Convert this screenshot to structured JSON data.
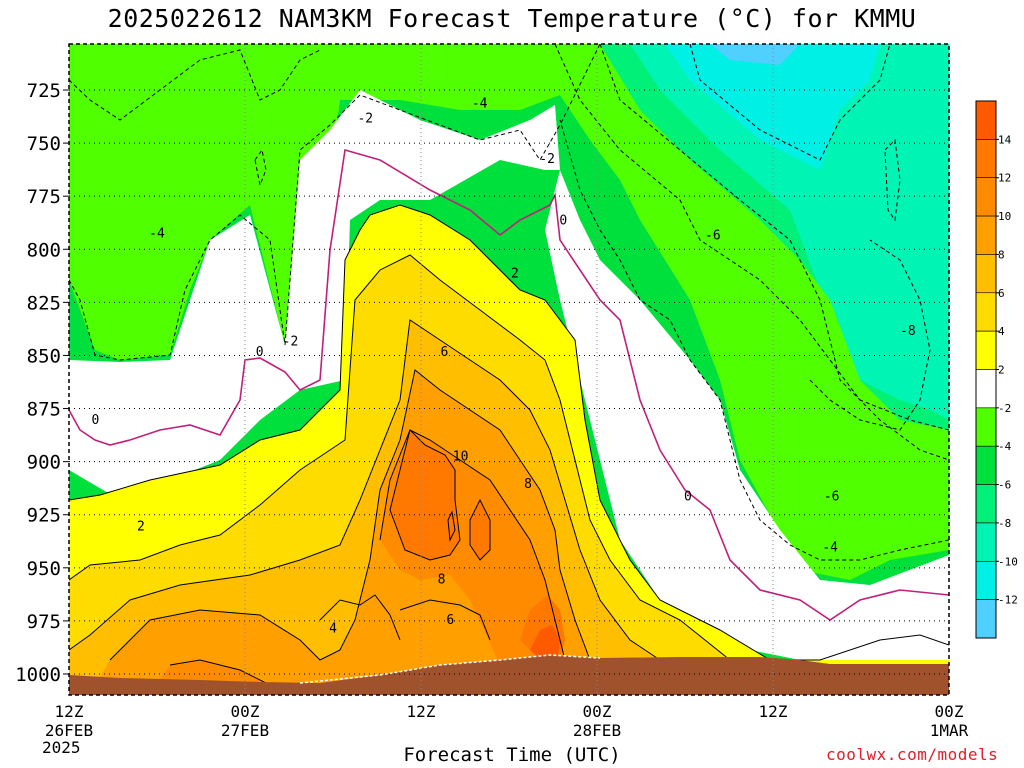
{
  "title": "2025022612 NAM3KM Forecast Temperature (°C) for KMMU",
  "xlabel": "Forecast Time (UTC)",
  "watermark": "coolwx.com/models",
  "year": "2025",
  "chart_data": {
    "type": "contour",
    "title": "2025022612 NAM3KM Forecast Temperature (°C) for KMMU",
    "xlabel": "Forecast Time (UTC)",
    "ylabel": "",
    "y_ticks": [
      725,
      750,
      775,
      800,
      825,
      850,
      875,
      900,
      925,
      950,
      975,
      1000
    ],
    "x_ticks": [
      {
        "hour": 0,
        "line1": "12Z",
        "line2": "26FEB"
      },
      {
        "hour": 12,
        "line1": "00Z",
        "line2": "27FEB"
      },
      {
        "hour": 24,
        "line1": "12Z",
        "line2": ""
      },
      {
        "hour": 36,
        "line1": "00Z",
        "line2": "28FEB"
      },
      {
        "hour": 48,
        "line1": "12Z",
        "line2": ""
      },
      {
        "hour": 60,
        "line1": "00Z",
        "line2": "1MAR"
      }
    ],
    "ylim": [
      1010,
      700
    ],
    "xlim": [
      0,
      60
    ],
    "grid": true,
    "colorbar": {
      "labels": [
        "14",
        "12",
        "10",
        "8",
        "6",
        "4",
        "2",
        "-2",
        "-4",
        "-6",
        "-8",
        "-10",
        "-12"
      ],
      "colors": [
        "#ff5a00",
        "#ff7800",
        "#ff8c00",
        "#ffa000",
        "#ffbe00",
        "#ffdc00",
        "#ffff00",
        "#ffffff",
        "#50ff00",
        "#00e03c",
        "#00f078",
        "#00f5b4",
        "#00f0e6",
        "#50d0ff"
      ]
    },
    "contour_labels": [
      {
        "text": "-2",
        "hour": 20.2,
        "hPa": 738
      },
      {
        "text": "-4",
        "hour": 28.0,
        "hPa": 731
      },
      {
        "text": "-2",
        "hour": 32.6,
        "hPa": 757
      },
      {
        "text": "-4",
        "hour": 6.0,
        "hPa": 792
      },
      {
        "text": "0",
        "hour": 33.7,
        "hPa": 786
      },
      {
        "text": "-6",
        "hour": 43.9,
        "hPa": 793
      },
      {
        "text": "2",
        "hour": 30.4,
        "hPa": 811
      },
      {
        "text": "0",
        "hour": 13.0,
        "hPa": 848
      },
      {
        "text": "-2",
        "hour": 15.1,
        "hPa": 843
      },
      {
        "text": "6",
        "hour": 25.6,
        "hPa": 848
      },
      {
        "text": "-8",
        "hour": 57.2,
        "hPa": 838
      },
      {
        "text": "0",
        "hour": 1.8,
        "hPa": 880
      },
      {
        "text": "10",
        "hour": 26.7,
        "hPa": 897
      },
      {
        "text": "8",
        "hour": 31.3,
        "hPa": 910
      },
      {
        "text": "0",
        "hour": 42.2,
        "hPa": 916
      },
      {
        "text": "-6",
        "hour": 52.0,
        "hPa": 916
      },
      {
        "text": "2",
        "hour": 4.9,
        "hPa": 930
      },
      {
        "text": "-4",
        "hour": 51.9,
        "hPa": 940
      },
      {
        "text": "8",
        "hour": 25.4,
        "hPa": 955
      },
      {
        "text": "4",
        "hour": 18.0,
        "hPa": 978
      },
      {
        "text": "6",
        "hour": 26.0,
        "hPa": 974
      }
    ]
  }
}
